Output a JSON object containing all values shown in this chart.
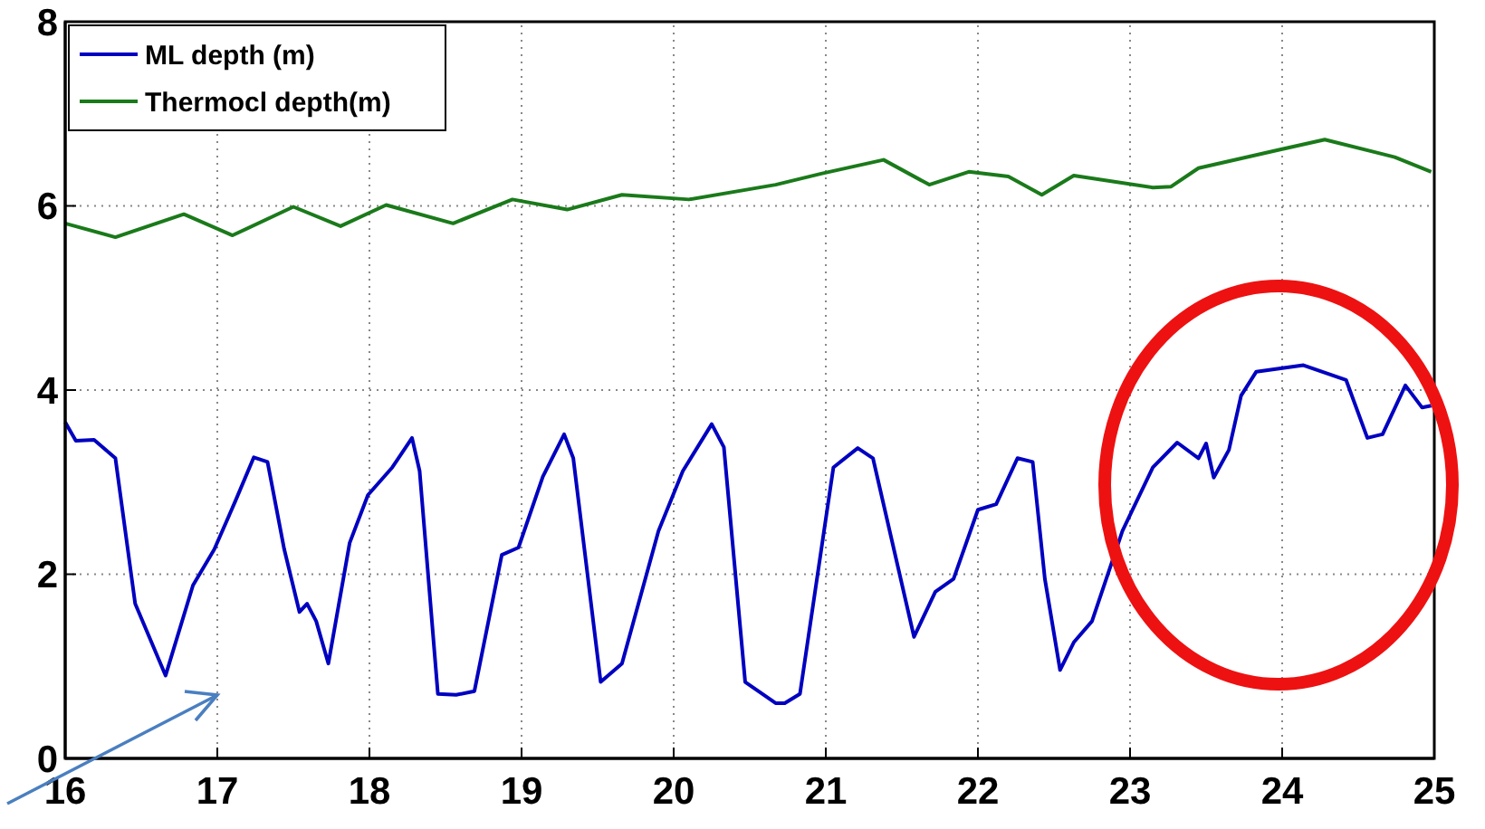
{
  "chart_data": {
    "type": "line",
    "xlim": [
      16,
      25
    ],
    "ylim": [
      0,
      8
    ],
    "xticks": [
      16,
      17,
      18,
      19,
      20,
      21,
      22,
      23,
      24,
      25
    ],
    "yticks": [
      0,
      2,
      4,
      6,
      8
    ],
    "grid": true,
    "legend": "top left",
    "line_style": "solid",
    "marker": "none",
    "series": [
      {
        "name": "ML depth (m)",
        "color": "#0000c0",
        "x": [
          16.0,
          16.07,
          16.19,
          16.33,
          16.46,
          16.56,
          16.66,
          16.84,
          16.98,
          17.12,
          17.24,
          17.33,
          17.44,
          17.54,
          17.59,
          17.65,
          17.73,
          17.87,
          17.99,
          18.15,
          18.28,
          18.33,
          18.45,
          18.57,
          18.69,
          18.87,
          18.98,
          19.14,
          19.28,
          19.34,
          19.52,
          19.66,
          19.9,
          20.06,
          20.25,
          20.33,
          20.47,
          20.67,
          20.73,
          20.83,
          21.05,
          21.21,
          21.31,
          21.58,
          21.72,
          21.84,
          22.0,
          22.12,
          22.26,
          22.36,
          22.44,
          22.54,
          22.63,
          22.75,
          22.95,
          23.15,
          23.31,
          23.45,
          23.5,
          23.55,
          23.65,
          23.73,
          23.83,
          24.14,
          24.42,
          24.56,
          24.66,
          24.81,
          24.92,
          24.98
        ],
        "values": [
          3.65,
          3.45,
          3.46,
          3.26,
          1.68,
          1.29,
          0.9,
          1.88,
          2.27,
          2.8,
          3.27,
          3.22,
          2.27,
          1.59,
          1.68,
          1.49,
          1.03,
          2.34,
          2.86,
          3.16,
          3.48,
          3.12,
          0.7,
          0.69,
          0.73,
          2.21,
          2.29,
          3.06,
          3.52,
          3.26,
          0.83,
          1.03,
          2.47,
          3.12,
          3.63,
          3.38,
          0.83,
          0.6,
          0.6,
          0.7,
          3.16,
          3.37,
          3.26,
          1.32,
          1.81,
          1.95,
          2.7,
          2.76,
          3.26,
          3.22,
          1.95,
          0.96,
          1.26,
          1.49,
          2.47,
          3.16,
          3.43,
          3.26,
          3.42,
          3.05,
          3.35,
          3.94,
          4.2,
          4.27,
          4.11,
          3.48,
          3.52,
          4.05,
          3.81,
          3.83
        ]
      },
      {
        "name": "Thermocl depth(m)",
        "color": "#1a7a1a",
        "x": [
          16.0,
          16.33,
          16.78,
          17.1,
          17.5,
          17.81,
          18.11,
          18.55,
          18.94,
          19.3,
          19.66,
          20.1,
          20.67,
          20.97,
          21.38,
          21.68,
          21.94,
          22.2,
          22.42,
          22.63,
          23.15,
          23.27,
          23.45,
          23.98,
          24.28,
          24.74,
          24.98
        ],
        "values": [
          5.81,
          5.66,
          5.91,
          5.68,
          5.99,
          5.78,
          6.01,
          5.81,
          6.07,
          5.96,
          6.12,
          6.07,
          6.23,
          6.35,
          6.5,
          6.23,
          6.37,
          6.32,
          6.12,
          6.33,
          6.2,
          6.21,
          6.41,
          6.61,
          6.72,
          6.53,
          6.37
        ]
      }
    ]
  }
}
